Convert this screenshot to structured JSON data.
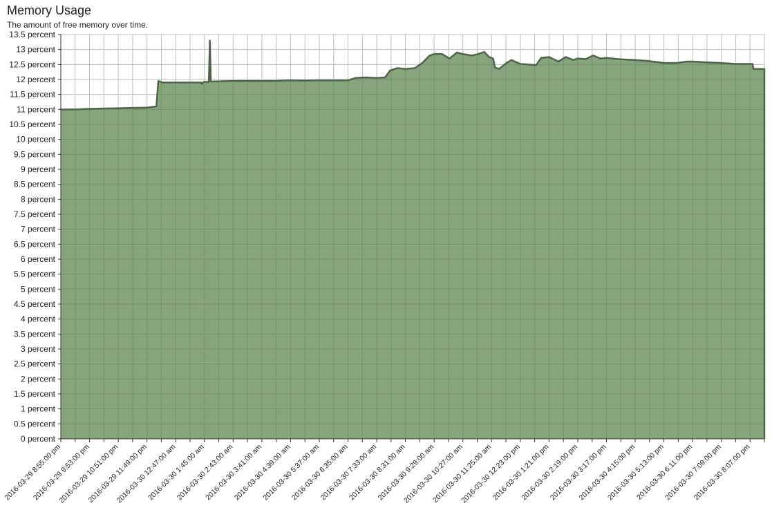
{
  "chart_data": {
    "type": "area",
    "title": "Memory Usage",
    "subtitle": "The amount of free memory over time.",
    "xlabel": "",
    "ylabel": "",
    "ylim": [
      0,
      13.5
    ],
    "grid": true,
    "colors": {
      "fill": "#86a57d",
      "line": "#4e6448",
      "grid": "#dcdcdc"
    },
    "y_ticks": [
      "0 percent",
      "0.5 percent",
      "1 percent",
      "1.5 percent",
      "2 percent",
      "2.5 percent",
      "3 percent",
      "3.5 percent",
      "4 percent",
      "4.5 percent",
      "5 percent",
      "5.5 percent",
      "6 percent",
      "6.5 percent",
      "7 percent",
      "7.5 percent",
      "8 percent",
      "8.5 percent",
      "9 percent",
      "9.5 percent",
      "10 percent",
      "10.5 percent",
      "11 percent",
      "11.5 percent",
      "12 percent",
      "12.5 percent",
      "13 percent",
      "13.5 percent"
    ],
    "x_ticks": [
      "2016-03-29 8:55:00 pm",
      "2016-03-29 9:53:00 pm",
      "2016-03-29 10:51:00 pm",
      "2016-03-29 11:49:00 pm",
      "2016-03-30 12:47:00 am",
      "2016-03-30 1:45:00 am",
      "2016-03-30 2:43:00 am",
      "2016-03-30 3:41:00 am",
      "2016-03-30 4:39:00 am",
      "2016-03-30 5:37:00 am",
      "2016-03-30 6:35:00 am",
      "2016-03-30 7:33:00 am",
      "2016-03-30 8:31:00 am",
      "2016-03-30 9:29:00 am",
      "2016-03-30 10:27:00 am",
      "2016-03-30 11:25:00 am",
      "2016-03-30 12:23:00 pm",
      "2016-03-30 1:21:00 pm",
      "2016-03-30 2:19:00 pm",
      "2016-03-30 3:17:00 pm",
      "2016-03-30 4:15:00 pm",
      "2016-03-30 5:13:00 pm",
      "2016-03-30 6:11:00 pm",
      "2016-03-30 7:09:00 pm",
      "2016-03-30 8:07:00 pm"
    ],
    "series": [
      {
        "points": [
          [
            "2016-03-29 8:55:00 pm",
            11.0
          ],
          [
            "2016-03-29 9:24:00 pm",
            11.0
          ],
          [
            "2016-03-29 9:53:00 pm",
            11.02
          ],
          [
            "2016-03-29 10:22:00 pm",
            11.03
          ],
          [
            "2016-03-29 10:51:00 pm",
            11.04
          ],
          [
            "2016-03-29 11:20:00 pm",
            11.05
          ],
          [
            "2016-03-29 11:49:00 pm",
            11.06
          ],
          [
            "2016-03-30 12:08:00 am",
            11.1
          ],
          [
            "2016-03-30 12:12:00 am",
            11.95
          ],
          [
            "2016-03-30 12:20:00 am",
            11.9
          ],
          [
            "2016-03-30 12:47:00 am",
            11.9
          ],
          [
            "2016-03-30 1:16:00 am",
            11.9
          ],
          [
            "2016-03-30 1:38:00 am",
            11.9
          ],
          [
            "2016-03-30 1:40:00 am",
            11.85
          ],
          [
            "2016-03-30 1:42:00 am",
            11.9
          ],
          [
            "2016-03-30 1:45:00 am",
            11.92
          ],
          [
            "2016-03-30 1:54:00 am",
            11.92
          ],
          [
            "2016-03-30 1:56:00 am",
            13.3
          ],
          [
            "2016-03-30 1:58:00 am",
            11.93
          ],
          [
            "2016-03-30 2:14:00 am",
            11.94
          ],
          [
            "2016-03-30 2:43:00 am",
            11.95
          ],
          [
            "2016-03-30 3:12:00 am",
            11.95
          ],
          [
            "2016-03-30 3:41:00 am",
            11.95
          ],
          [
            "2016-03-30 4:10:00 am",
            11.95
          ],
          [
            "2016-03-30 4:39:00 am",
            11.97
          ],
          [
            "2016-03-30 5:08:00 am",
            11.96
          ],
          [
            "2016-03-30 5:37:00 am",
            11.97
          ],
          [
            "2016-03-30 6:06:00 am",
            11.97
          ],
          [
            "2016-03-30 6:35:00 am",
            11.97
          ],
          [
            "2016-03-30 6:50:00 am",
            12.05
          ],
          [
            "2016-03-30 7:10:00 am",
            12.07
          ],
          [
            "2016-03-30 7:33:00 am",
            12.05
          ],
          [
            "2016-03-30 7:50:00 am",
            12.07
          ],
          [
            "2016-03-30 8:00:00 am",
            12.3
          ],
          [
            "2016-03-30 8:15:00 am",
            12.38
          ],
          [
            "2016-03-30 8:31:00 am",
            12.35
          ],
          [
            "2016-03-30 8:50:00 am",
            12.38
          ],
          [
            "2016-03-30 9:05:00 am",
            12.55
          ],
          [
            "2016-03-30 9:20:00 am",
            12.8
          ],
          [
            "2016-03-30 9:29:00 am",
            12.85
          ],
          [
            "2016-03-30 9:45:00 am",
            12.85
          ],
          [
            "2016-03-30 10:00:00 am",
            12.7
          ],
          [
            "2016-03-30 10:15:00 am",
            12.9
          ],
          [
            "2016-03-30 10:27:00 am",
            12.85
          ],
          [
            "2016-03-30 10:45:00 am",
            12.8
          ],
          [
            "2016-03-30 10:58:00 am",
            12.85
          ],
          [
            "2016-03-30 11:10:00 am",
            12.92
          ],
          [
            "2016-03-30 11:20:00 am",
            12.75
          ],
          [
            "2016-03-30 11:28:00 am",
            12.7
          ],
          [
            "2016-03-30 11:32:00 am",
            12.4
          ],
          [
            "2016-03-30 11:40:00 am",
            12.35
          ],
          [
            "2016-03-30 11:55:00 am",
            12.55
          ],
          [
            "2016-03-30 12:05:00 pm",
            12.65
          ],
          [
            "2016-03-30 12:23:00 pm",
            12.52
          ],
          [
            "2016-03-30 12:40:00 pm",
            12.5
          ],
          [
            "2016-03-30 12:55:00 pm",
            12.48
          ],
          [
            "2016-03-30 1:05:00 pm",
            12.72
          ],
          [
            "2016-03-30 1:21:00 pm",
            12.75
          ],
          [
            "2016-03-30 1:40:00 pm",
            12.6
          ],
          [
            "2016-03-30 1:55:00 pm",
            12.75
          ],
          [
            "2016-03-30 2:10:00 pm",
            12.65
          ],
          [
            "2016-03-30 2:19:00 pm",
            12.7
          ],
          [
            "2016-03-30 2:35:00 pm",
            12.68
          ],
          [
            "2016-03-30 2:50:00 pm",
            12.8
          ],
          [
            "2016-03-30 3:05:00 pm",
            12.7
          ],
          [
            "2016-03-30 3:17:00 pm",
            12.72
          ],
          [
            "2016-03-30 3:40:00 pm",
            12.68
          ],
          [
            "2016-03-30 4:00:00 pm",
            12.66
          ],
          [
            "2016-03-30 4:15:00 pm",
            12.65
          ],
          [
            "2016-03-30 4:40:00 pm",
            12.62
          ],
          [
            "2016-03-30 5:00:00 pm",
            12.58
          ],
          [
            "2016-03-30 5:13:00 pm",
            12.55
          ],
          [
            "2016-03-30 5:40:00 pm",
            12.55
          ],
          [
            "2016-03-30 6:00:00 pm",
            12.6
          ],
          [
            "2016-03-30 6:11:00 pm",
            12.6
          ],
          [
            "2016-03-30 6:40:00 pm",
            12.57
          ],
          [
            "2016-03-30 7:09:00 pm",
            12.55
          ],
          [
            "2016-03-30 7:38:00 pm",
            12.52
          ],
          [
            "2016-03-30 8:07:00 pm",
            12.52
          ],
          [
            "2016-03-30 8:12:00 pm",
            12.52
          ],
          [
            "2016-03-30 8:14:00 pm",
            12.35
          ],
          [
            "2016-03-30 8:30:00 pm",
            12.35
          ],
          [
            "2016-03-30 8:36:00 pm",
            12.35
          ]
        ]
      }
    ]
  }
}
